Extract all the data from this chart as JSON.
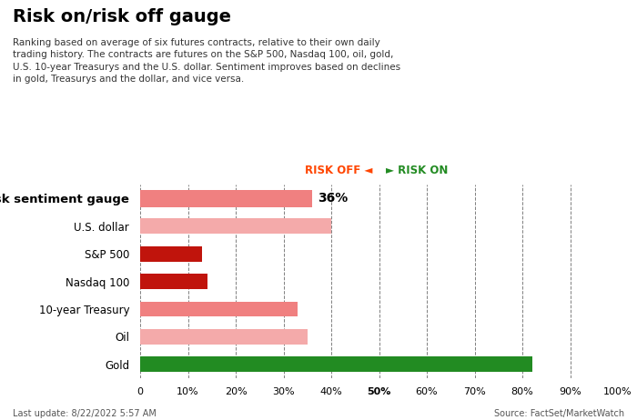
{
  "title": "Risk on/risk off gauge",
  "subtitle": "Ranking based on average of six futures contracts, relative to their own daily\ntrading history. The contracts are futures on the S&P 500, Nasdaq 100, oil, gold,\nU.S. 10-year Treasurys and the U.S. dollar. Sentiment improves based on declines\nin gold, Treasurys and the dollar, and vice versa.",
  "categories": [
    "Risk sentiment gauge",
    "U.S. dollar",
    "S&P 500",
    "Nasdaq 100",
    "10-year Treasury",
    "Oil",
    "Gold"
  ],
  "values": [
    36,
    40,
    13,
    14,
    33,
    35,
    82
  ],
  "bar_colors": [
    "#F08080",
    "#F4AAAA",
    "#C0140C",
    "#C0140C",
    "#F08080",
    "#F4AAAA",
    "#228B22"
  ],
  "gauge_label": "36%",
  "xlim": [
    0,
    100
  ],
  "xticks": [
    0,
    10,
    20,
    30,
    40,
    50,
    60,
    70,
    80,
    90,
    100
  ],
  "xticklabels": [
    "0",
    "10%",
    "20%",
    "30%",
    "40%",
    "50%",
    "60%",
    "70%",
    "80%",
    "90%",
    "100%"
  ],
  "risk_off_label": "RISK OFF",
  "risk_on_label": "RISK ON",
  "risk_off_color": "#FF4500",
  "risk_on_color": "#228B22",
  "footer_left": "Last update: 8/22/2022 5:57 AM",
  "footer_right": "Source: FactSet/MarketWatch",
  "background_color": "#FFFFFF"
}
